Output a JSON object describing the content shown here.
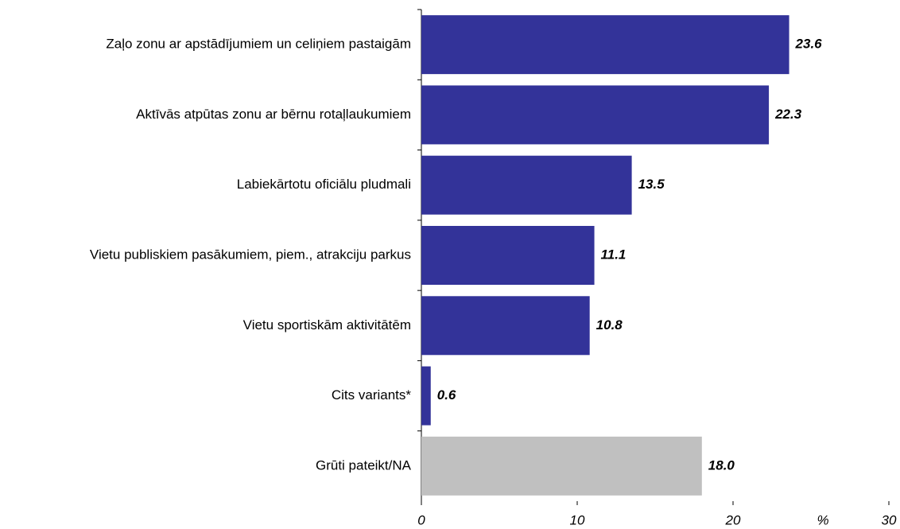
{
  "chart_data": {
    "type": "barh",
    "categories": [
      "Zaļo zonu ar apstādījumiem un celiņiem pastaigām",
      "Aktīvās atpūtas zonu ar bērnu rotaļlaukumiem",
      "Labiekārtotu oficiālu pludmali",
      "Vietu publiskiem pasākumiem, piem., atrakciju parkus",
      "Vietu sportiskām aktivitātēm",
      "Cits variants*",
      "Grūti pateikt/NA"
    ],
    "values": [
      23.6,
      22.3,
      13.5,
      11.1,
      10.8,
      0.6,
      18.0
    ],
    "value_labels": [
      "23.6",
      "22.3",
      "13.5",
      "11.1",
      "10.8",
      "0.6",
      "18.0"
    ],
    "colors": [
      "#333399",
      "#333399",
      "#333399",
      "#333399",
      "#333399",
      "#333399",
      "#c0c0c0"
    ],
    "xlim": [
      0,
      30
    ],
    "xticks": [
      0,
      10,
      20,
      30
    ],
    "x_label": "%"
  }
}
